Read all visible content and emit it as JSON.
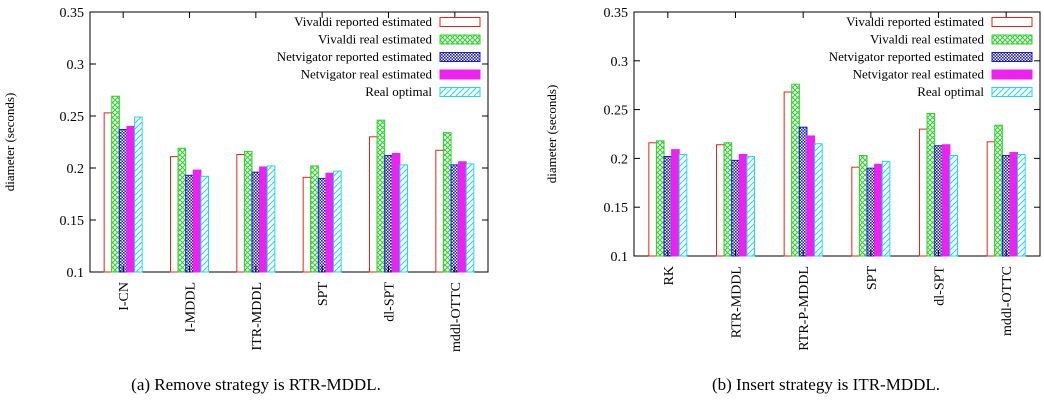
{
  "colors": {
    "vivaldi_reported": "#e8231c",
    "vivaldi_real": "#2fd12f",
    "netvigator_reported": "#1c1cc8",
    "netvigator_real": "#ee22ee",
    "real_optimal": "#22d8e8"
  },
  "chart_data": [
    {
      "type": "bar",
      "caption": "(a)  Remove strategy is RTR-MDDL.",
      "ylabel": "diameter (seconds)",
      "ylim": [
        0.1,
        0.35
      ],
      "yticks": [
        "0.1",
        "0.15",
        "0.2",
        "0.25",
        "0.3",
        "0.35"
      ],
      "categories": [
        "I-CN",
        "I-MDDL",
        "ITR-MDDL",
        "SPT",
        "dl-SPT",
        "mddl-OTTC"
      ],
      "legend_position": "top-right",
      "grid": false,
      "series": [
        {
          "name": "Vivaldi reported estimated",
          "values": [
            0.253,
            0.211,
            0.213,
            0.191,
            0.23,
            0.217
          ]
        },
        {
          "name": "Vivaldi real estimated",
          "values": [
            0.269,
            0.219,
            0.216,
            0.202,
            0.246,
            0.234
          ]
        },
        {
          "name": "Netvigator reported estimated",
          "values": [
            0.237,
            0.193,
            0.196,
            0.19,
            0.212,
            0.203
          ]
        },
        {
          "name": "Netvigator real estimated",
          "values": [
            0.24,
            0.198,
            0.201,
            0.195,
            0.214,
            0.206
          ]
        },
        {
          "name": "Real optimal",
          "values": [
            0.249,
            0.192,
            0.202,
            0.197,
            0.203,
            0.204
          ]
        }
      ]
    },
    {
      "type": "bar",
      "caption": "(b)  Insert strategy is ITR-MDDL.",
      "ylabel": "diameter (seconds)",
      "ylim": [
        0.1,
        0.35
      ],
      "yticks": [
        "0.1",
        "0.15",
        "0.2",
        "0.25",
        "0.3",
        "0.35"
      ],
      "categories": [
        "RK",
        "RTR-MDDL",
        "RTR-P-MDDL",
        "SPT",
        "dl-SPT",
        "mddl-OTTC"
      ],
      "legend_position": "top-right",
      "grid": false,
      "series": [
        {
          "name": "Vivaldi reported estimated",
          "values": [
            0.216,
            0.214,
            0.268,
            0.191,
            0.23,
            0.217
          ]
        },
        {
          "name": "Vivaldi real estimated",
          "values": [
            0.218,
            0.216,
            0.276,
            0.203,
            0.246,
            0.234
          ]
        },
        {
          "name": "Netvigator reported estimated",
          "values": [
            0.202,
            0.198,
            0.232,
            0.19,
            0.213,
            0.203
          ]
        },
        {
          "name": "Netvigator real estimated",
          "values": [
            0.209,
            0.204,
            0.223,
            0.194,
            0.214,
            0.206
          ]
        },
        {
          "name": "Real optimal",
          "values": [
            0.204,
            0.202,
            0.215,
            0.197,
            0.203,
            0.204
          ]
        }
      ]
    }
  ]
}
